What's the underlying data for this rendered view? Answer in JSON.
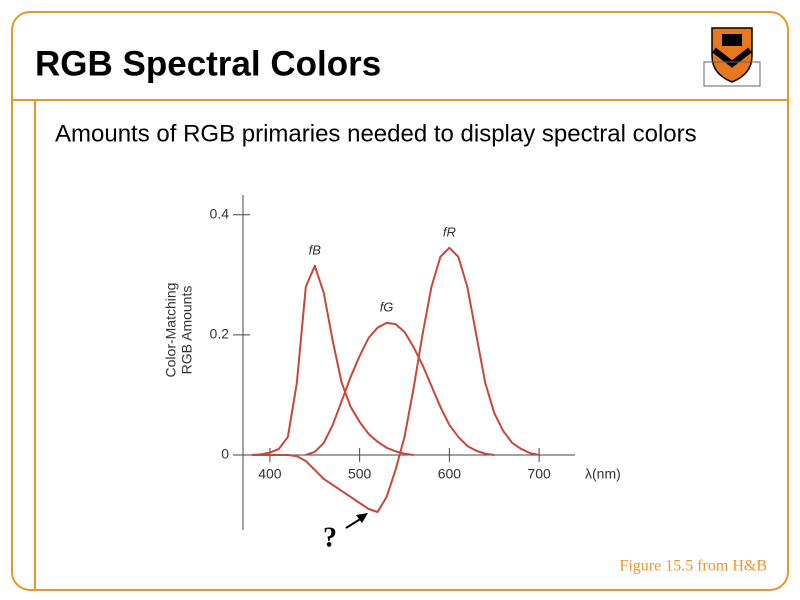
{
  "chart_data": {
    "type": "line",
    "title": "RGB Spectral Colors",
    "subtitle": "Amounts of RGB primaries needed to display spectral colors",
    "ylabel": [
      "Color-Matching",
      "RGB Amounts"
    ],
    "xlabel": "λ(nm)",
    "annotations": [
      "?",
      "Figure 15.5 from H&B"
    ],
    "x": [
      380,
      390,
      400,
      410,
      420,
      430,
      440,
      450,
      460,
      470,
      480,
      490,
      500,
      510,
      520,
      530,
      540,
      550,
      560,
      570,
      580,
      590,
      600,
      610,
      620,
      630,
      640,
      650,
      660,
      670,
      680,
      690,
      700,
      710,
      720
    ],
    "series": [
      {
        "name": "fB",
        "color": "#c8463a",
        "values": [
          0,
          0.001,
          0.004,
          0.01,
          0.03,
          0.12,
          0.28,
          0.315,
          0.27,
          0.19,
          0.12,
          0.08,
          0.055,
          0.035,
          0.022,
          0.012,
          0.006,
          0.002,
          0,
          null,
          null,
          null,
          null,
          null,
          null,
          null,
          null,
          null,
          null,
          null,
          null,
          null,
          null,
          null,
          null
        ]
      },
      {
        "name": "fG",
        "color": "#c8463a",
        "values": [
          null,
          null,
          null,
          null,
          null,
          null,
          0,
          0.005,
          0.02,
          0.05,
          0.09,
          0.13,
          0.165,
          0.195,
          0.212,
          0.22,
          0.218,
          0.205,
          0.18,
          0.15,
          0.115,
          0.08,
          0.05,
          0.03,
          0.015,
          0.007,
          0.002,
          0,
          null,
          null,
          null,
          null,
          null,
          null,
          null
        ]
      },
      {
        "name": "fR",
        "color": "#c8463a",
        "values": [
          0,
          0,
          0,
          0,
          0,
          -0.002,
          -0.01,
          -0.025,
          -0.04,
          -0.05,
          -0.06,
          -0.07,
          -0.08,
          -0.09,
          -0.095,
          -0.07,
          -0.025,
          0.03,
          0.11,
          0.2,
          0.28,
          0.33,
          0.345,
          0.33,
          0.28,
          0.2,
          0.12,
          0.07,
          0.04,
          0.02,
          0.01,
          0.003,
          0,
          null,
          null
        ]
      }
    ],
    "xlim": [
      370,
      740
    ],
    "ylim": [
      -0.125,
      0.433
    ],
    "xticks": [
      400,
      500,
      600,
      700
    ],
    "yticks": [
      0,
      0.2,
      0.4
    ]
  }
}
